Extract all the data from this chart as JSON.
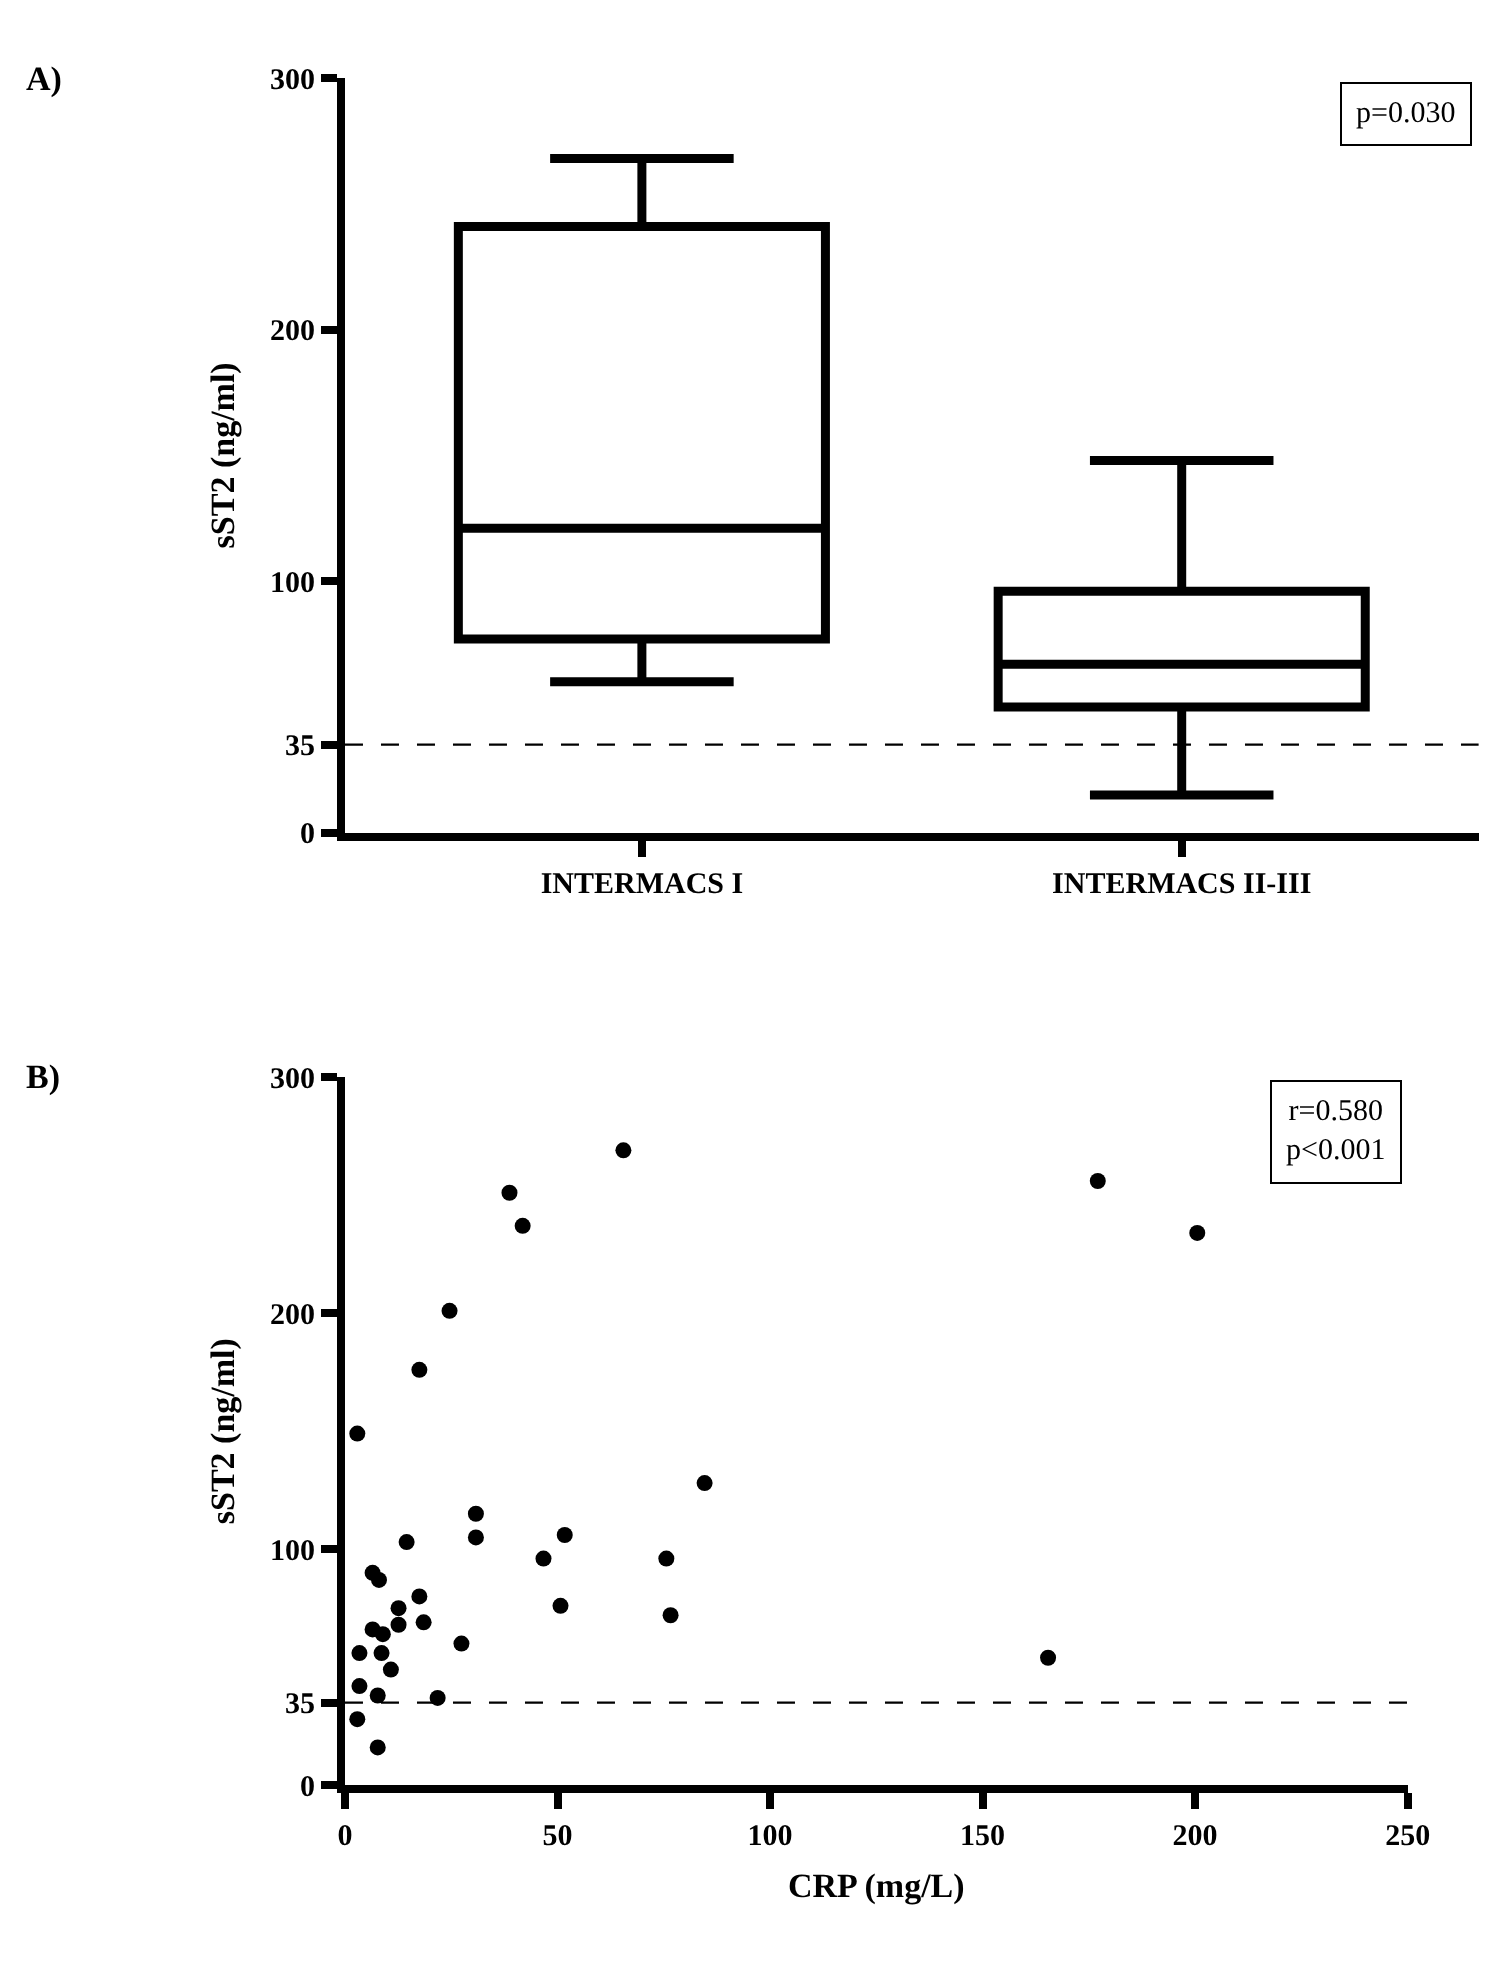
{
  "chart_data": [
    {
      "type": "box",
      "ylabel": "sST2 (ng/ml)",
      "categories": [
        "INTERMACS I",
        "INTERMACS II-III"
      ],
      "color": "#000000",
      "boxes": [
        {
          "low": 60,
          "q1": 77,
          "median": 121,
          "q3": 241,
          "high": 268
        },
        {
          "low": 15,
          "q1": 50,
          "median": 67,
          "q3": 96,
          "high": 148
        }
      ],
      "ylim": [
        0,
        300
      ],
      "yticks": [
        0,
        35,
        100,
        200,
        300
      ],
      "legend": false,
      "ref_lines": [
        {
          "axis": "y",
          "value": 35,
          "color": "#000000",
          "line_style": "dashed"
        }
      ],
      "annotations": [
        "A)",
        "p=0.030"
      ]
    },
    {
      "type": "scatter",
      "xlabel": "CRP (mg/L)",
      "ylabel": "sST2 (ng/ml)",
      "marker": "circle",
      "legend": false,
      "series": [
        {
          "color": "#000000",
          "x": [
            65.5,
            38.7,
            41.8,
            24.6,
            17.5,
            2.9,
            84.6,
            30.8,
            30.8,
            51.7,
            14.5,
            46.7,
            75.6,
            6.5,
            8.0,
            17.5,
            50.7,
            76.6,
            12.6,
            12.6,
            18.5,
            6.5,
            8.9,
            27.4,
            3.4,
            8.6,
            10.8,
            3.4,
            7.7,
            21.8,
            2.9,
            7.7,
            177.1,
            200.5,
            165.4
          ],
          "values": [
            269,
            251,
            237,
            201,
            176,
            149,
            128,
            115,
            105,
            106,
            103,
            96,
            96,
            90,
            87,
            80,
            76,
            72,
            75,
            68,
            69,
            66,
            64,
            60,
            56,
            56,
            49,
            42,
            38,
            37,
            28,
            16,
            256,
            234,
            54
          ]
        }
      ],
      "xlim": [
        0,
        250
      ],
      "xticks": [
        0,
        50,
        100,
        150,
        200,
        250
      ],
      "ylim": [
        0,
        300
      ],
      "yticks": [
        0,
        35,
        100,
        200,
        300
      ],
      "ref_lines": [
        {
          "axis": "y",
          "value": 35,
          "color": "#000000",
          "line_style": "dashed"
        }
      ],
      "annotations": [
        "B)",
        "r=0.580\np<0.001"
      ]
    }
  ]
}
